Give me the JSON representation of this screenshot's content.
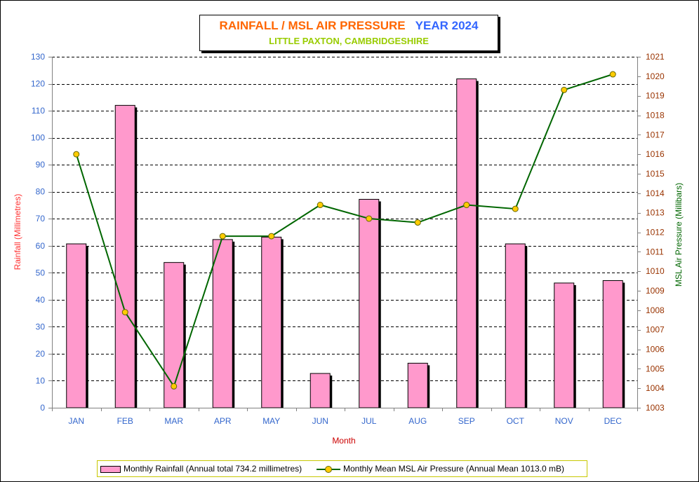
{
  "title": {
    "part1": "RAINFALL / MSL AIR PRESSURE",
    "part2": "YEAR 2024",
    "subtitle": "LITTLE PAXTON, CAMBRIDGESHIRE"
  },
  "legend": {
    "rainfall": "Monthly Rainfall (Annual total 734.2 millimetres)",
    "pressure": "Monthly Mean MSL Air Pressure (Annual Mean 1013.0 mB)"
  },
  "colors": {
    "bar": "#ff99cc",
    "line": "#006600",
    "marker": "#ffcc00",
    "left_axis": "#3366cc",
    "right_axis": "#993300",
    "ylabel_left": "#ff3333",
    "ylabel_right": "#006600",
    "xlabel": "#cc0000"
  },
  "chart_data": {
    "type": "bar",
    "categories": [
      "JAN",
      "FEB",
      "MAR",
      "APR",
      "MAY",
      "JUN",
      "JUL",
      "AUG",
      "SEP",
      "OCT",
      "NOV",
      "DEC"
    ],
    "series": [
      {
        "name": "Monthly Rainfall (Annual total 734.2 millimetres)",
        "type": "bar",
        "axis": "left",
        "values": [
          60.7,
          112.0,
          53.8,
          62.3,
          63.2,
          12.7,
          77.2,
          16.5,
          121.8,
          60.7,
          46.2,
          47.1
        ]
      },
      {
        "name": "Monthly Mean MSL Air Pressure (Annual Mean 1013.0 mB)",
        "type": "line",
        "axis": "right",
        "values": [
          1016.0,
          1007.9,
          1004.1,
          1011.8,
          1011.8,
          1013.4,
          1012.7,
          1012.5,
          1013.4,
          1013.2,
          1019.3,
          1020.1
        ]
      }
    ],
    "xlabel": "Month",
    "ylabel": "Rainfall (Millimetres)",
    "y2label": "MSL Air Pressure (Millibars)",
    "ylim": [
      0,
      130
    ],
    "yticks": [
      0,
      10,
      20,
      30,
      40,
      50,
      60,
      70,
      80,
      90,
      100,
      110,
      120,
      130
    ],
    "y2lim": [
      1003,
      1021
    ],
    "y2ticks": [
      1003,
      1004,
      1005,
      1006,
      1007,
      1008,
      1009,
      1010,
      1011,
      1012,
      1013,
      1014,
      1015,
      1016,
      1017,
      1018,
      1019,
      1020,
      1021
    ],
    "grid": true,
    "legend_position": "bottom"
  }
}
